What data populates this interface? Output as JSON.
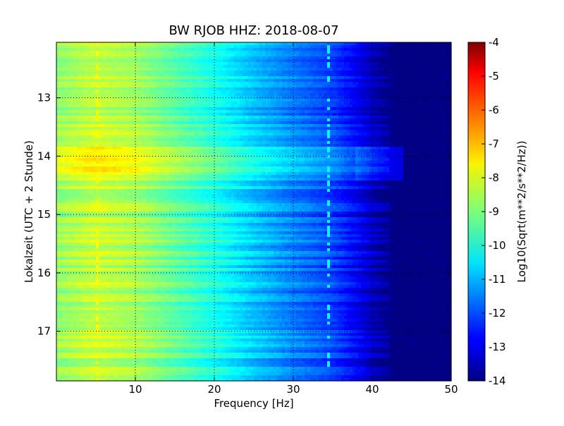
{
  "chart_data": {
    "type": "heatmap",
    "title": "BW RJOB HHZ: 2018-08-07",
    "xlabel": "Frequency [Hz]",
    "ylabel": "Lokalzeit (UTC + 2 Stunde)",
    "colorbar_label": "Log10(Sqrt(m**2/s**2/Hz))",
    "colormap": "jet",
    "xlim": [
      0,
      50
    ],
    "ylim": [
      12.05,
      17.85
    ],
    "y_inverted": true,
    "x_ticks": [
      "10",
      "20",
      "30",
      "40",
      "50"
    ],
    "y_ticks": [
      "13",
      "14",
      "15",
      "16",
      "17"
    ],
    "x_tick_values": [
      10,
      20,
      30,
      40,
      50
    ],
    "y_tick_values": [
      13,
      14,
      15,
      16,
      17
    ],
    "grid": true,
    "clim": [
      -14,
      -4
    ],
    "colorbar_ticks": [
      "-4",
      "-5",
      "-6",
      "-7",
      "-8",
      "-9",
      "-10",
      "-11",
      "-12",
      "-13",
      "-14"
    ],
    "colorbar_tick_values": [
      -4,
      -5,
      -6,
      -7,
      -8,
      -9,
      -10,
      -11,
      -12,
      -13,
      -14
    ],
    "level_profile": {
      "frequency_hz": [
        0,
        5,
        10,
        15,
        20,
        25,
        30,
        35,
        38,
        41,
        43,
        50
      ],
      "level": [
        -8.8,
        -8.3,
        -8.6,
        -9.3,
        -10.0,
        -10.8,
        -11.5,
        -12.1,
        -12.8,
        -13.6,
        -14,
        -14
      ]
    },
    "features": [
      {
        "kind": "loud band",
        "time_range": [
          13.85,
          14.4
        ],
        "level_offset": 0.6
      },
      {
        "kind": "line",
        "frequency_hz": 34.4,
        "level": -10.3
      },
      {
        "kind": "line",
        "frequency_hz": 5.2,
        "level": -7.8
      }
    ]
  }
}
